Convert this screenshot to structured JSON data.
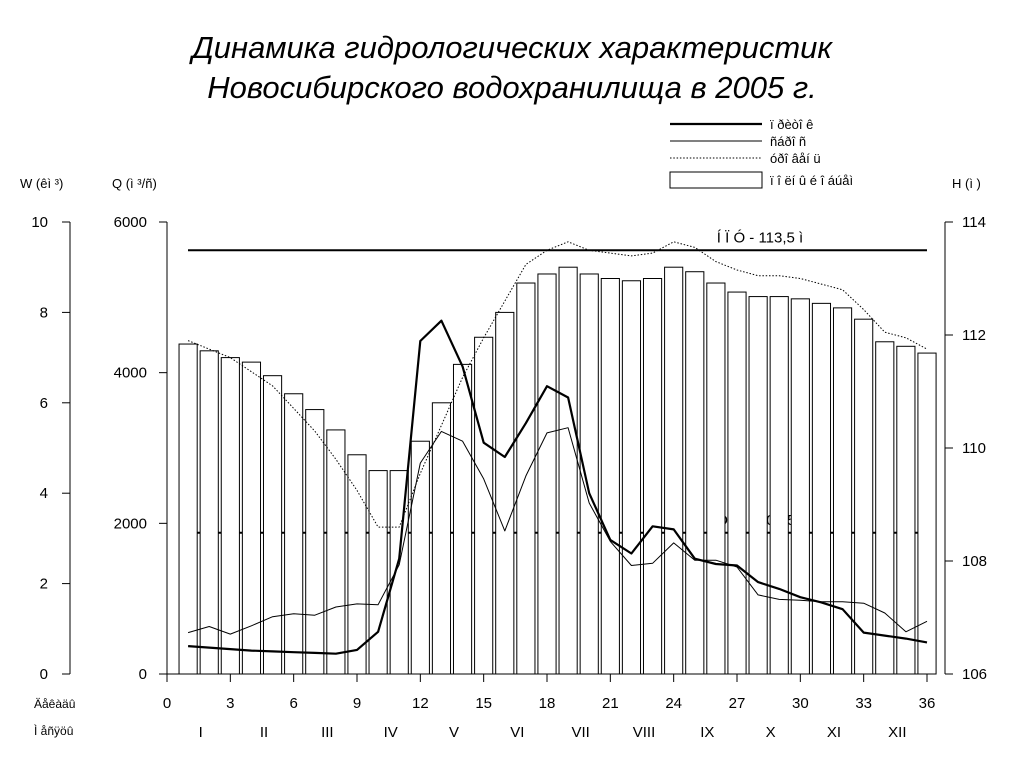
{
  "title_line1": "Динамика гидрологических характеристик",
  "title_line2": "Новосибирского водохранилища в 2005 г.",
  "chart_data": {
    "type": "bar",
    "xlabel": "Äåêàäû",
    "months_label": "Ì åñÿöû",
    "x_ticks": [
      0,
      3,
      6,
      9,
      12,
      15,
      18,
      21,
      24,
      27,
      30,
      33,
      36
    ],
    "xlim": [
      0,
      36
    ],
    "months": [
      "I",
      "II",
      "III",
      "IV",
      "V",
      "VI",
      "VII",
      "VIII",
      "IX",
      "X",
      "XI",
      "XII"
    ],
    "axes": {
      "W": {
        "label": "W (êì ³)",
        "range": [
          0,
          10
        ],
        "ticks": [
          0,
          2,
          4,
          6,
          8,
          10
        ]
      },
      "Q": {
        "label": "Q (ì ³/ñ)",
        "range": [
          0,
          6000
        ],
        "ticks": [
          0,
          2000,
          4000,
          6000
        ]
      },
      "H": {
        "label": "H (ì )",
        "range": [
          106,
          114
        ],
        "ticks": [
          106,
          108,
          110,
          112,
          114
        ]
      }
    },
    "legend": {
      "position": "top-right",
      "entries": [
        "ï ðèòî ê",
        "ñáðî ñ",
        "óðî âåí ü",
        "ï î ëí û é î áúåì"
      ]
    },
    "reference_lines": [
      {
        "label": "Í Ï Ó - 113,5 ì",
        "H": 113.5
      },
      {
        "label": "Ó Ì Î  - 108,5 ì",
        "H": 108.5
      }
    ],
    "series": [
      {
        "name": "ï î ëí û é î áúåì",
        "type": "bar",
        "axis": "W",
        "x": [
          1,
          2,
          3,
          4,
          5,
          6,
          7,
          8,
          9,
          10,
          11,
          12,
          13,
          14,
          15,
          16,
          17,
          18,
          19,
          20,
          21,
          22,
          23,
          24,
          25,
          26,
          27,
          28,
          29,
          30,
          31,
          32,
          33,
          34,
          35,
          36
        ],
        "values": [
          7.3,
          7.15,
          7.0,
          6.9,
          6.6,
          6.2,
          5.85,
          5.4,
          4.85,
          4.5,
          4.5,
          5.15,
          6.0,
          6.85,
          7.45,
          8.0,
          8.65,
          8.85,
          9.0,
          8.85,
          8.75,
          8.7,
          8.75,
          9.0,
          8.9,
          8.65,
          8.45,
          8.35,
          8.35,
          8.3,
          8.2,
          8.1,
          7.85,
          7.35,
          7.25,
          7.1
        ]
      },
      {
        "name": "ï ðèòî ê",
        "type": "line",
        "axis": "Q",
        "x": [
          1,
          2,
          3,
          4,
          5,
          6,
          7,
          8,
          9,
          10,
          11,
          12,
          13,
          14,
          15,
          16,
          17,
          18,
          19,
          20,
          21,
          22,
          23,
          24,
          25,
          26,
          27,
          28,
          29,
          30,
          31,
          32,
          33,
          34,
          35,
          36
        ],
        "values": [
          370,
          350,
          330,
          310,
          300,
          290,
          280,
          270,
          320,
          560,
          1530,
          4420,
          4690,
          4080,
          3070,
          2880,
          3330,
          3820,
          3670,
          2400,
          1780,
          1600,
          1960,
          1920,
          1530,
          1460,
          1440,
          1220,
          1130,
          1020,
          950,
          860,
          550,
          510,
          470,
          420
        ]
      },
      {
        "name": "ñáðî ñ",
        "type": "line",
        "axis": "Q",
        "x": [
          1,
          2,
          3,
          4,
          5,
          6,
          7,
          8,
          9,
          10,
          11,
          12,
          13,
          14,
          15,
          16,
          17,
          18,
          19,
          20,
          21,
          22,
          23,
          24,
          25,
          26,
          27,
          28,
          29,
          30,
          31,
          32,
          33,
          34,
          35,
          36
        ],
        "values": [
          550,
          630,
          530,
          640,
          760,
          800,
          780,
          890,
          930,
          920,
          1450,
          2800,
          3220,
          3090,
          2590,
          1900,
          2630,
          3200,
          3270,
          2270,
          1760,
          1440,
          1470,
          1740,
          1510,
          1510,
          1420,
          1050,
          990,
          980,
          960,
          960,
          940,
          810,
          560,
          700
        ]
      },
      {
        "name": "óðî âåí ü",
        "type": "line",
        "axis": "H",
        "x": [
          1,
          2,
          3,
          4,
          5,
          6,
          7,
          8,
          9,
          10,
          11,
          12,
          13,
          14,
          15,
          16,
          17,
          18,
          19,
          20,
          21,
          22,
          23,
          24,
          25,
          26,
          27,
          28,
          29,
          30,
          31,
          32,
          33,
          34,
          35,
          36
        ],
        "values": [
          111.9,
          111.75,
          111.6,
          111.35,
          111.1,
          110.7,
          110.3,
          109.8,
          109.25,
          108.6,
          108.6,
          109.55,
          110.4,
          111.25,
          111.95,
          112.6,
          113.25,
          113.5,
          113.65,
          113.5,
          113.45,
          113.4,
          113.45,
          113.65,
          113.55,
          113.3,
          113.15,
          113.05,
          113.05,
          113.0,
          112.9,
          112.8,
          112.45,
          112.05,
          111.95,
          111.75
        ]
      }
    ]
  }
}
